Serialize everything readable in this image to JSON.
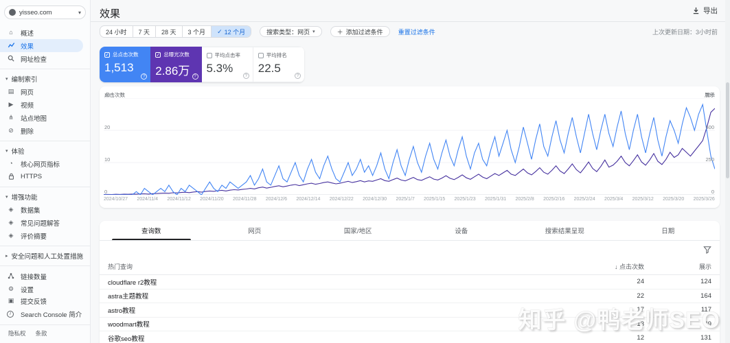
{
  "sidebar": {
    "property": {
      "name": "yisseo.com",
      "caret": "▾"
    },
    "items": [
      {
        "label": "概述",
        "glyph": "⌂"
      },
      {
        "label": "效果"
      },
      {
        "label": "网址检查"
      },
      {
        "label": "编制索引",
        "caret": "▾"
      },
      {
        "label": "网页",
        "glyph": "▤"
      },
      {
        "label": "视频",
        "glyph": "▶"
      },
      {
        "label": "站点地图",
        "glyph": "⋔"
      },
      {
        "label": "删除",
        "glyph": "⊘"
      },
      {
        "label": "体验",
        "caret": "▾"
      },
      {
        "label": "核心网页指标",
        "glyph": "◔"
      },
      {
        "label": "HTTPS"
      },
      {
        "label": "增强功能",
        "caret": "▾"
      },
      {
        "label": "数据集",
        "glyph": "◈"
      },
      {
        "label": "常见问题解答",
        "glyph": "◈"
      },
      {
        "label": "评价摘要",
        "glyph": "◈"
      },
      {
        "label": "安全问题和人工处置措施",
        "caret": "▸"
      },
      {
        "label": "链接数量"
      },
      {
        "label": "设置",
        "glyph": "⚙"
      },
      {
        "label": "提交反馈",
        "glyph": "▣"
      },
      {
        "label": "Search Console 简介"
      }
    ],
    "footer_links": {
      "privacy": "隐私权",
      "terms": "条款"
    }
  },
  "header": {
    "title": "效果",
    "export_label": "导出",
    "last_updated": "上次更新日期：3小时前"
  },
  "filters": {
    "ranges": [
      "24 小时",
      "7 天",
      "28 天",
      "3 个月",
      "12 个月"
    ],
    "selected_index": 4,
    "check": "✓",
    "search_type": "搜索类型：网页",
    "search_type_caret": "▾",
    "add_filter_plus": "＋",
    "add_filter": "添加过滤条件",
    "reset": "重置过滤条件"
  },
  "cards": [
    {
      "label": "总点击次数",
      "value": "1,513",
      "checked": true,
      "color": "#4285f4"
    },
    {
      "label": "总曝光次数",
      "value": "2.86万",
      "checked": true,
      "color": "#5e35b1"
    },
    {
      "label": "平均点击率",
      "value": "5.3%",
      "checked": false,
      "color": "#ffffff"
    },
    {
      "label": "平均排名",
      "value": "22.5",
      "checked": false,
      "color": "#ffffff"
    }
  ],
  "card_help_glyph": "?",
  "chart_data": {
    "type": "line",
    "title": "",
    "ylabel_left": "点击次数",
    "ylabel_right": "展示",
    "yticks_left": [
      30,
      20,
      10,
      0
    ],
    "yticks_right": [
      750,
      500,
      250,
      0
    ],
    "ylim_left": [
      0,
      30
    ],
    "ylim_right": [
      0,
      750
    ],
    "grid": true,
    "x_labels": [
      "2024/10/27",
      "2024/11/4",
      "2024/11/12",
      "2024/11/20",
      "2024/11/28",
      "2024/12/6",
      "2024/12/14",
      "2024/12/22",
      "2024/12/30",
      "2025/1/7",
      "2025/1/15",
      "2025/1/23",
      "2025/1/31",
      "2025/2/8",
      "2025/2/16",
      "2025/2/24",
      "2025/3/4",
      "2025/3/12",
      "2025/3/20",
      "2025/3/26"
    ],
    "series": [
      {
        "name": "点击次数",
        "axis": "left",
        "color": "#4285f4",
        "values": [
          0,
          0,
          0,
          0,
          0,
          0,
          0,
          0,
          1,
          0,
          2,
          1,
          0,
          1,
          2,
          1,
          3,
          1,
          0,
          2,
          1,
          3,
          2,
          1,
          0,
          2,
          4,
          2,
          1,
          3,
          2,
          4,
          3,
          2,
          3,
          4,
          6,
          3,
          5,
          8,
          4,
          3,
          6,
          9,
          5,
          4,
          7,
          10,
          6,
          4,
          8,
          11,
          7,
          5,
          9,
          12,
          8,
          5,
          4,
          7,
          10,
          6,
          8,
          11,
          7,
          9,
          6,
          9,
          13,
          8,
          5,
          10,
          14,
          9,
          6,
          11,
          15,
          10,
          7,
          12,
          16,
          11,
          8,
          13,
          17,
          12,
          9,
          14,
          18,
          12,
          8,
          13,
          16,
          11,
          9,
          14,
          18,
          12,
          16,
          20,
          14,
          10,
          15,
          21,
          16,
          11,
          17,
          22,
          15,
          12,
          18,
          23,
          17,
          13,
          19,
          24,
          18,
          13,
          19,
          25,
          19,
          14,
          20,
          25,
          19,
          15,
          21,
          26,
          19,
          14,
          20,
          25,
          18,
          13,
          19,
          24,
          17,
          12,
          18,
          23,
          20,
          16,
          22,
          27,
          24,
          20,
          25,
          28,
          20,
          12,
          8
        ]
      },
      {
        "name": "展示",
        "axis": "right",
        "color": "#45309e",
        "values": [
          2,
          3,
          2,
          4,
          3,
          5,
          4,
          6,
          5,
          7,
          8,
          6,
          9,
          10,
          12,
          14,
          12,
          16,
          15,
          18,
          20,
          17,
          22,
          25,
          21,
          26,
          30,
          27,
          32,
          35,
          30,
          36,
          40,
          38,
          42,
          45,
          50,
          46,
          55,
          60,
          52,
          58,
          65,
          70,
          62,
          68,
          75,
          80,
          72,
          78,
          85,
          90,
          82,
          88,
          95,
          100,
          92,
          85,
          90,
          98,
          105,
          95,
          102,
          110,
          100,
          108,
          105,
          115,
          125,
          110,
          105,
          118,
          130,
          115,
          108,
          122,
          135,
          118,
          112,
          126,
          140,
          122,
          115,
          130,
          148,
          128,
          118,
          135,
          155,
          132,
          120,
          140,
          160,
          138,
          125,
          145,
          165,
          150,
          170,
          190,
          160,
          150,
          175,
          200,
          170,
          155,
          180,
          210,
          175,
          160,
          190,
          225,
          185,
          165,
          200,
          240,
          195,
          170,
          210,
          255,
          205,
          180,
          220,
          270,
          215,
          230,
          260,
          300,
          250,
          225,
          265,
          310,
          255,
          230,
          270,
          320,
          260,
          235,
          275,
          330,
          290,
          310,
          360,
          330,
          300,
          340,
          380,
          420,
          520,
          640,
          670
        ]
      }
    ]
  },
  "tabs": [
    "查询数",
    "网页",
    "国家/地区",
    "设备",
    "搜索结果呈现",
    "日期"
  ],
  "table": {
    "header": {
      "query": "热门查询",
      "sort_arrow": "↓",
      "clicks": "点击次数",
      "impressions": "展示"
    },
    "rows": [
      {
        "query": "cloudflare r2教程",
        "clicks": "24",
        "impressions": "124"
      },
      {
        "query": "astra主题教程",
        "clicks": "22",
        "impressions": "164"
      },
      {
        "query": "astro教程",
        "clicks": "17",
        "impressions": "117"
      },
      {
        "query": "woodmart教程",
        "clicks": "13",
        "impressions": "49"
      },
      {
        "query": "谷歌seo教程",
        "clicks": "12",
        "impressions": "131"
      }
    ]
  },
  "watermark": "知乎 @鸭老师SEO"
}
